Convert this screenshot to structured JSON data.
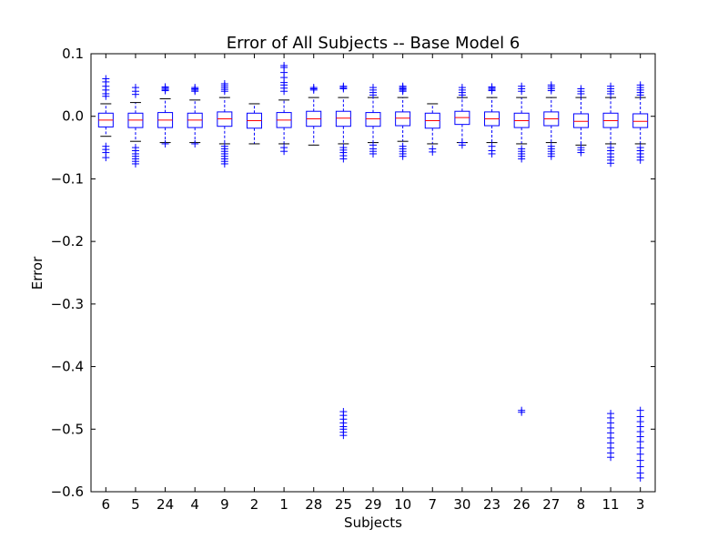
{
  "chart_data": {
    "type": "box",
    "title": "Error of All Subjects -- Base Model 6",
    "xlabel": "Subjects",
    "ylabel": "Error",
    "ylim": [
      -0.6,
      0.1
    ],
    "yticks": [
      0.1,
      0.0,
      -0.1,
      -0.2,
      -0.3,
      -0.4,
      -0.5,
      -0.6
    ],
    "ytick_labels": [
      "0.1",
      "0.0",
      "−0.1",
      "−0.2",
      "−0.3",
      "−0.4",
      "−0.5",
      "−0.6"
    ],
    "grid": false,
    "colors": {
      "box": "#0000ff",
      "median": "#ff0000",
      "whisker": "#0000ff",
      "cap": "#000000",
      "flier": "#0000ff"
    },
    "categories": [
      "6",
      "5",
      "24",
      "4",
      "9",
      "2",
      "1",
      "28",
      "25",
      "29",
      "10",
      "7",
      "30",
      "23",
      "26",
      "27",
      "8",
      "11",
      "3"
    ],
    "boxes": [
      {
        "q1": -0.017,
        "median": -0.006,
        "q3": 0.005,
        "whislo": -0.032,
        "whishi": 0.02,
        "fliers": [
          0.06,
          0.055,
          0.048,
          0.042,
          0.036,
          0.032,
          -0.048,
          -0.053,
          -0.058,
          -0.066
        ]
      },
      {
        "q1": -0.018,
        "median": -0.006,
        "q3": 0.005,
        "whislo": -0.04,
        "whishi": 0.022,
        "fliers": [
          0.046,
          0.04,
          0.035,
          -0.05,
          -0.055,
          -0.06,
          -0.064,
          -0.068,
          -0.072,
          -0.076
        ]
      },
      {
        "q1": -0.018,
        "median": -0.006,
        "q3": 0.006,
        "whislo": -0.042,
        "whishi": 0.028,
        "fliers": [
          0.047,
          0.045,
          0.043,
          0.041,
          -0.044
        ]
      },
      {
        "q1": -0.018,
        "median": -0.006,
        "q3": 0.005,
        "whislo": -0.042,
        "whishi": 0.026,
        "fliers": [
          0.046,
          0.044,
          0.042,
          0.04,
          -0.044
        ]
      },
      {
        "q1": -0.016,
        "median": -0.004,
        "q3": 0.007,
        "whislo": -0.044,
        "whishi": 0.03,
        "fliers": [
          0.052,
          0.049,
          0.046,
          0.043,
          0.04,
          -0.048,
          -0.052,
          -0.056,
          -0.06,
          -0.064,
          -0.068,
          -0.072,
          -0.076
        ]
      },
      {
        "q1": -0.019,
        "median": -0.007,
        "q3": 0.005,
        "whislo": -0.044,
        "whishi": 0.02,
        "fliers": []
      },
      {
        "q1": -0.018,
        "median": -0.006,
        "q3": 0.006,
        "whislo": -0.044,
        "whishi": 0.026,
        "fliers": [
          0.081,
          0.078,
          0.07,
          0.062,
          0.054,
          0.05,
          0.045,
          0.04,
          -0.05,
          -0.056
        ]
      },
      {
        "q1": -0.016,
        "median": -0.004,
        "q3": 0.008,
        "whislo": -0.046,
        "whishi": 0.03,
        "fliers": [
          0.046,
          0.044,
          0.042
        ]
      },
      {
        "q1": -0.016,
        "median": -0.003,
        "q3": 0.008,
        "whislo": -0.044,
        "whishi": 0.03,
        "fliers": [
          0.048,
          0.046,
          0.044,
          -0.05,
          -0.054,
          -0.058,
          -0.063,
          -0.068,
          -0.472,
          -0.478,
          -0.484,
          -0.49,
          -0.496,
          -0.5,
          -0.505,
          -0.51
        ]
      },
      {
        "q1": -0.016,
        "median": -0.004,
        "q3": 0.006,
        "whislo": -0.042,
        "whishi": 0.03,
        "fliers": [
          0.046,
          0.042,
          0.038,
          0.034,
          -0.046,
          -0.052,
          -0.056,
          -0.06
        ]
      },
      {
        "q1": -0.015,
        "median": -0.003,
        "q3": 0.007,
        "whislo": -0.04,
        "whishi": 0.03,
        "fliers": [
          0.048,
          0.046,
          0.044,
          0.042,
          0.04,
          -0.048,
          -0.052,
          -0.056,
          -0.06,
          -0.064
        ]
      },
      {
        "q1": -0.019,
        "median": -0.007,
        "q3": 0.005,
        "whislo": -0.044,
        "whishi": 0.02,
        "fliers": [
          -0.052,
          -0.057
        ]
      },
      {
        "q1": -0.013,
        "median": -0.002,
        "q3": 0.008,
        "whislo": -0.042,
        "whishi": 0.03,
        "fliers": [
          0.046,
          0.042,
          0.038,
          0.034,
          -0.042,
          -0.046
        ]
      },
      {
        "q1": -0.015,
        "median": -0.004,
        "q3": 0.007,
        "whislo": -0.042,
        "whishi": 0.03,
        "fliers": [
          0.047,
          0.045,
          0.043,
          0.041,
          -0.048,
          -0.055,
          -0.06
        ]
      },
      {
        "q1": -0.018,
        "median": -0.007,
        "q3": 0.005,
        "whislo": -0.044,
        "whishi": 0.03,
        "fliers": [
          0.048,
          0.044,
          0.04,
          -0.052,
          -0.056,
          -0.06,
          -0.064,
          -0.068,
          -0.47,
          -0.473
        ]
      },
      {
        "q1": -0.015,
        "median": -0.004,
        "q3": 0.007,
        "whislo": -0.042,
        "whishi": 0.03,
        "fliers": [
          0.05,
          0.047,
          0.044,
          0.041,
          -0.048,
          -0.052,
          -0.056,
          -0.06,
          -0.064
        ]
      },
      {
        "q1": -0.018,
        "median": -0.008,
        "q3": 0.004,
        "whislo": -0.046,
        "whishi": 0.03,
        "fliers": [
          0.044,
          0.04,
          0.036,
          -0.05,
          -0.054,
          -0.058
        ]
      },
      {
        "q1": -0.018,
        "median": -0.007,
        "q3": 0.005,
        "whislo": -0.044,
        "whishi": 0.03,
        "fliers": [
          0.048,
          0.044,
          0.04,
          0.036,
          -0.05,
          -0.055,
          -0.06,
          -0.065,
          -0.07,
          -0.075,
          -0.475,
          -0.482,
          -0.49,
          -0.498,
          -0.506,
          -0.514,
          -0.522,
          -0.53,
          -0.538,
          -0.545
        ]
      },
      {
        "q1": -0.018,
        "median": -0.008,
        "q3": 0.004,
        "whislo": -0.044,
        "whishi": 0.03,
        "fliers": [
          0.05,
          0.046,
          0.042,
          0.038,
          0.034,
          -0.05,
          -0.055,
          -0.06,
          -0.065,
          -0.07,
          -0.47,
          -0.48,
          -0.488,
          -0.496,
          -0.504,
          -0.512,
          -0.52,
          -0.53,
          -0.54,
          -0.55,
          -0.56,
          -0.57,
          -0.578
        ]
      }
    ]
  }
}
